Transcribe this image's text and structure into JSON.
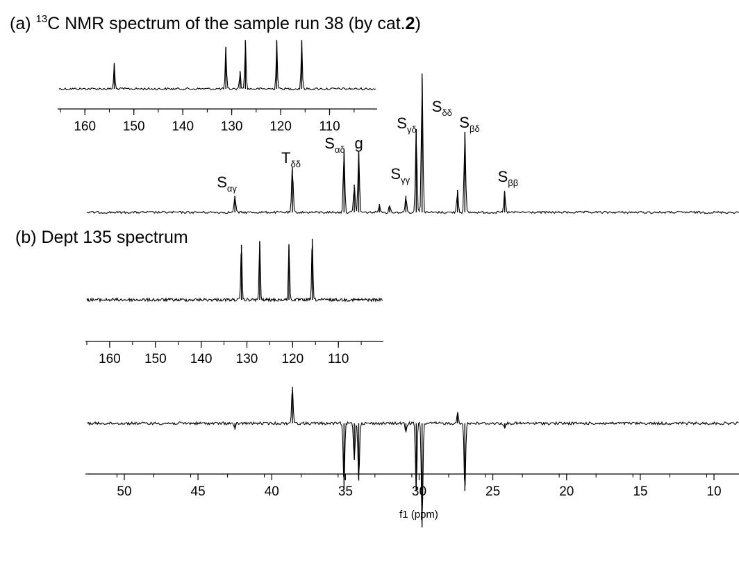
{
  "panels": {
    "a": {
      "title_prefix": "(a) ",
      "title_superscript": "13",
      "title_main": "C NMR spectrum of the sample run 38 (by cat.",
      "title_bold": "2",
      "title_suffix": ")"
    },
    "b": {
      "title": "(b) Dept 135 spectrum"
    }
  },
  "peak_labels": [
    {
      "main": "S",
      "sub": "αγ",
      "ppm": 42.5
    },
    {
      "main": "T",
      "sub": "δδ",
      "ppm": 38.6
    },
    {
      "main": "S",
      "sub": "αδ",
      "ppm": 35.1
    },
    {
      "main": "g",
      "sub": "",
      "ppm": 34.1
    },
    {
      "main": "S",
      "sub": "γγ",
      "ppm": 30.9
    },
    {
      "main": "S",
      "sub": "γδ",
      "ppm": 30.2
    },
    {
      "main": "S",
      "sub": "δδ",
      "ppm": 29.8
    },
    {
      "main": "S",
      "sub": "βδ",
      "ppm": 26.9
    },
    {
      "main": "S",
      "sub": "ββ",
      "ppm": 24.2
    }
  ],
  "chart_data": [
    {
      "type": "line",
      "name": "13C main spectrum",
      "xlabel": "f1 (ppm)",
      "xlim": [
        53,
        8
      ],
      "x_ticks": [
        50,
        45,
        40,
        35,
        30,
        25,
        20,
        15,
        10
      ],
      "peaks_ppm": [
        42.5,
        38.6,
        35.1,
        34.4,
        34.1,
        32.7,
        32.0,
        30.9,
        30.2,
        29.8,
        27.4,
        26.9,
        24.2
      ],
      "peak_heights_rel": [
        0.12,
        0.33,
        0.46,
        0.2,
        0.44,
        0.06,
        0.05,
        0.12,
        0.6,
        1.0,
        0.16,
        0.58,
        0.15
      ]
    },
    {
      "type": "line",
      "name": "13C aromatic inset",
      "xlim": [
        165,
        100
      ],
      "x_ticks": [
        160,
        150,
        140,
        130,
        120,
        110
      ],
      "peaks_ppm": [
        154.0,
        131.2,
        128.3,
        127.2,
        120.8,
        115.7
      ],
      "peak_heights_rel": [
        0.52,
        0.86,
        0.37,
        1.0,
        1.0,
        1.0
      ]
    },
    {
      "type": "line",
      "name": "DEPT 135 aromatic inset",
      "xlim": [
        165,
        100
      ],
      "x_ticks": [
        160,
        150,
        140,
        130,
        120,
        110
      ],
      "peaks_ppm": [
        131.2,
        127.2,
        120.8,
        115.7
      ],
      "peak_heights_rel": [
        0.9,
        0.95,
        0.9,
        1.0
      ]
    },
    {
      "type": "line",
      "name": "DEPT 135 main spectrum",
      "xlabel": "f1 (ppm)",
      "xlim": [
        53,
        8
      ],
      "x_ticks": [
        50,
        45,
        40,
        35,
        30,
        25,
        20,
        15,
        10
      ],
      "peaks_ppm": [
        42.5,
        38.6,
        35.1,
        34.4,
        34.1,
        30.9,
        30.2,
        29.8,
        27.4,
        26.9,
        24.2
      ],
      "peak_heights_rel": [
        -0.06,
        0.35,
        -0.62,
        -0.35,
        -0.55,
        -0.08,
        -0.65,
        -1.0,
        0.1,
        -0.65,
        -0.05
      ]
    }
  ]
}
